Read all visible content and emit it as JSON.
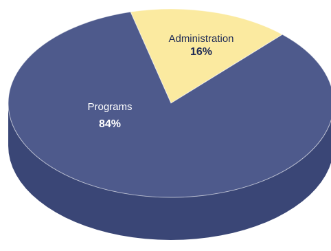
{
  "chart_data": {
    "type": "pie",
    "style": "3d",
    "start_angle_deg": 104.4,
    "slices": [
      {
        "name": "Administration",
        "label": "Administration",
        "value": 16,
        "value_label": "16%",
        "color": "#fbeaa0",
        "side_color": "#c9b36a",
        "label_color": "#1e2a55"
      },
      {
        "name": "Programs",
        "label": "Programs",
        "value": 84,
        "value_label": "84%",
        "color": "#4e5a8c",
        "side_color": "#3a4676",
        "label_color": "#ffffff"
      }
    ],
    "title": "",
    "legend": "none"
  }
}
